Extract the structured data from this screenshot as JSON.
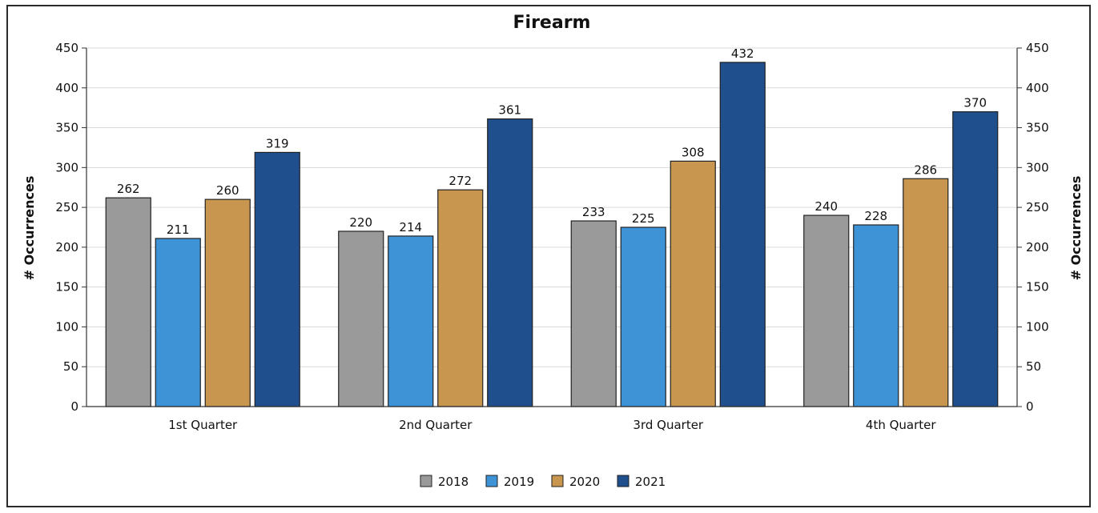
{
  "chart_data": {
    "type": "bar",
    "title": "Firearm",
    "ylabel": "# Occurrences",
    "ylabel_right": "# Occurrences",
    "ylim": [
      0,
      450
    ],
    "yticks": [
      0,
      50,
      100,
      150,
      200,
      250,
      300,
      350,
      400,
      450
    ],
    "categories": [
      "1st Quarter",
      "2nd Quarter",
      "3rd Quarter",
      "4th Quarter"
    ],
    "series": [
      {
        "name": "2018",
        "color": "#9a9a9a",
        "values": [
          262,
          220,
          233,
          240
        ]
      },
      {
        "name": "2019",
        "color": "#3d93d6",
        "values": [
          211,
          214,
          225,
          228
        ]
      },
      {
        "name": "2020",
        "color": "#c8964f",
        "values": [
          260,
          272,
          308,
          286
        ]
      },
      {
        "name": "2021",
        "color": "#1f4f8c",
        "values": [
          319,
          361,
          432,
          370
        ]
      }
    ],
    "legend_position": "bottom",
    "grid": true
  }
}
